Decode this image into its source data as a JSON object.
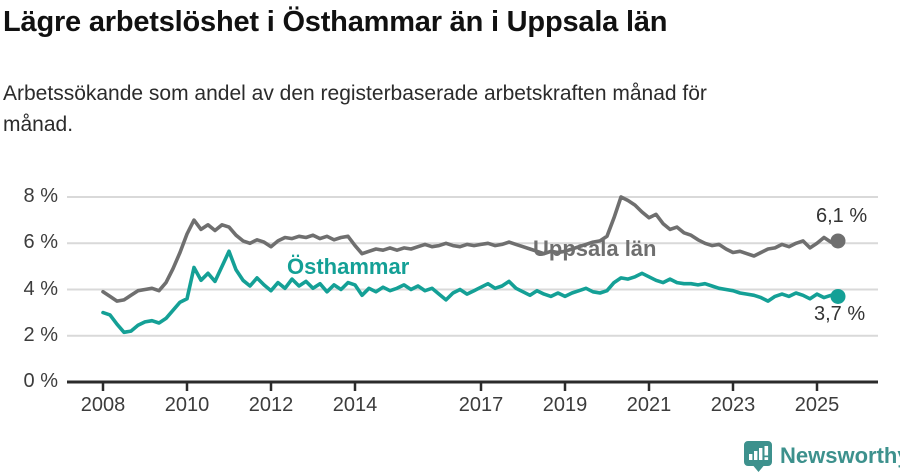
{
  "header": {
    "title": "Lägre arbetslöshet i Östhammar än i Uppsala län",
    "subtitle": "Arbetssökande som andel av den registerbaserade arbetskraften månad för månad."
  },
  "chart_data": {
    "type": "line",
    "unit": "%",
    "grid": "horizontal",
    "legend_position": "inline-labels",
    "x_start": 2008,
    "x_end": 2025.5,
    "x_step_years": 0.1666667,
    "ylim": [
      0,
      8
    ],
    "xticks": [
      2008,
      2010,
      2012,
      2014,
      2017,
      2019,
      2021,
      2023,
      2025
    ],
    "yticks": [
      {
        "label": "0 %",
        "value": 0
      },
      {
        "label": "2 %",
        "value": 2
      },
      {
        "label": "4 %",
        "value": 4
      },
      {
        "label": "6 %",
        "value": 6
      },
      {
        "label": "8 %",
        "value": 8
      }
    ],
    "series": [
      {
        "name": "Uppsala län",
        "color": "#6f6f6f",
        "end_label": "6,1 %",
        "end_value": 6.1,
        "values": [
          3.9,
          3.7,
          3.5,
          3.55,
          3.75,
          3.95,
          4.0,
          4.05,
          3.95,
          4.3,
          4.9,
          5.6,
          6.4,
          7.0,
          6.6,
          6.8,
          6.55,
          6.8,
          6.7,
          6.35,
          6.1,
          6.0,
          6.15,
          6.05,
          5.85,
          6.1,
          6.25,
          6.2,
          6.3,
          6.25,
          6.35,
          6.2,
          6.3,
          6.15,
          6.25,
          6.3,
          5.9,
          5.55,
          5.65,
          5.75,
          5.7,
          5.8,
          5.7,
          5.8,
          5.75,
          5.85,
          5.95,
          5.85,
          5.9,
          6.0,
          5.9,
          5.85,
          5.95,
          5.9,
          5.95,
          6.0,
          5.9,
          5.95,
          6.05,
          5.95,
          5.85,
          5.75,
          5.65,
          5.55,
          5.65,
          5.6,
          5.65,
          5.75,
          5.85,
          5.95,
          6.05,
          6.1,
          6.3,
          7.1,
          8.0,
          7.85,
          7.65,
          7.35,
          7.1,
          7.25,
          6.85,
          6.6,
          6.7,
          6.45,
          6.35,
          6.15,
          6.0,
          5.9,
          5.95,
          5.75,
          5.6,
          5.65,
          5.55,
          5.45,
          5.6,
          5.75,
          5.8,
          5.95,
          5.85,
          6.0,
          6.1,
          5.8,
          6.0,
          6.25,
          6.05,
          6.1
        ]
      },
      {
        "name": "Östhammar",
        "color": "#14a096",
        "end_label": "3,7 %",
        "end_value": 3.7,
        "values": [
          3.0,
          2.9,
          2.5,
          2.15,
          2.2,
          2.45,
          2.6,
          2.65,
          2.55,
          2.75,
          3.1,
          3.45,
          3.6,
          4.95,
          4.4,
          4.7,
          4.35,
          5.0,
          5.65,
          4.85,
          4.4,
          4.15,
          4.5,
          4.2,
          3.95,
          4.3,
          4.05,
          4.45,
          4.15,
          4.35,
          4.05,
          4.25,
          3.9,
          4.2,
          4.0,
          4.3,
          4.2,
          3.75,
          4.05,
          3.9,
          4.1,
          3.95,
          4.05,
          4.2,
          4.0,
          4.15,
          3.95,
          4.05,
          3.8,
          3.55,
          3.85,
          4.0,
          3.8,
          3.95,
          4.1,
          4.25,
          4.05,
          4.15,
          4.35,
          4.05,
          3.9,
          3.75,
          3.95,
          3.8,
          3.7,
          3.85,
          3.7,
          3.85,
          3.95,
          4.05,
          3.9,
          3.85,
          3.95,
          4.3,
          4.5,
          4.45,
          4.55,
          4.7,
          4.55,
          4.4,
          4.3,
          4.45,
          4.3,
          4.25,
          4.25,
          4.2,
          4.25,
          4.15,
          4.05,
          4.0,
          3.95,
          3.85,
          3.8,
          3.75,
          3.65,
          3.5,
          3.7,
          3.8,
          3.7,
          3.85,
          3.75,
          3.6,
          3.8,
          3.65,
          3.75,
          3.7
        ]
      }
    ]
  },
  "footer": {
    "brand": "Newsworthy",
    "brand_color": "#3d918d"
  }
}
